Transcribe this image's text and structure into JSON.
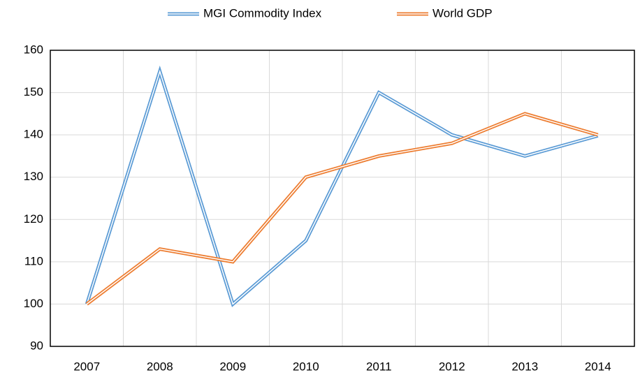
{
  "chart_data": {
    "type": "line",
    "categories": [
      "2007",
      "2008",
      "2009",
      "2010",
      "2011",
      "2012",
      "2013",
      "2014"
    ],
    "series": [
      {
        "name": "MGI Commodity Index",
        "color": "#5b9bd5",
        "values": [
          100,
          155,
          100,
          115,
          150,
          140,
          135,
          139.8
        ]
      },
      {
        "name": "World GDP",
        "color": "#ed7d31",
        "values": [
          100,
          113,
          110,
          130,
          135,
          138,
          145,
          140
        ]
      }
    ],
    "ylim": [
      90,
      160
    ],
    "yticks": [
      90,
      100,
      110,
      120,
      130,
      140,
      150,
      160
    ],
    "grid": true,
    "legend": "top"
  }
}
